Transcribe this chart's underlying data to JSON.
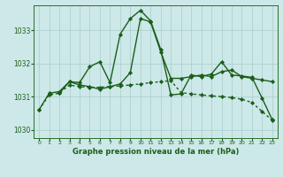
{
  "title": "Graphe pression niveau de la mer (hPa)",
  "bg_color": "#cde8e8",
  "grid_color": "#aacccc",
  "line_color": "#1a5e1a",
  "xlim": [
    -0.5,
    23.5
  ],
  "ylim": [
    1029.75,
    1033.75
  ],
  "yticks": [
    1030,
    1031,
    1032,
    1033
  ],
  "xticks": [
    0,
    1,
    2,
    3,
    4,
    5,
    6,
    7,
    8,
    9,
    10,
    11,
    12,
    13,
    14,
    15,
    16,
    17,
    18,
    19,
    20,
    21,
    22,
    23
  ],
  "series": [
    {
      "x": [
        0,
        1,
        2,
        3,
        4,
        5,
        6,
        7,
        8,
        9,
        10,
        11,
        12,
        13,
        14,
        15,
        16,
        17,
        18,
        19,
        20,
        21,
        22,
        23
      ],
      "y": [
        1030.6,
        1031.05,
        1031.1,
        1031.35,
        1031.3,
        1031.28,
        1031.28,
        1031.3,
        1031.32,
        1031.35,
        1031.38,
        1031.42,
        1031.45,
        1031.48,
        1031.12,
        1031.08,
        1031.05,
        1031.02,
        1031.0,
        1030.97,
        1030.92,
        1030.82,
        1030.55,
        1030.28
      ],
      "lw": 1.0,
      "linestyle": "dotted",
      "marker": true
    },
    {
      "x": [
        0,
        1,
        2,
        3,
        4,
        5,
        6,
        7,
        8,
        9,
        10,
        11,
        12,
        13,
        14,
        15,
        16,
        17,
        18,
        19,
        20,
        21,
        22,
        23
      ],
      "y": [
        1030.6,
        1031.1,
        1031.15,
        1031.45,
        1031.35,
        1031.3,
        1031.22,
        1031.3,
        1031.38,
        1031.72,
        1033.35,
        1033.25,
        1032.35,
        1031.55,
        1031.55,
        1031.6,
        1031.65,
        1031.6,
        1031.75,
        1031.8,
        1031.6,
        1031.55,
        1031.5,
        1031.45
      ],
      "lw": 1.0,
      "linestyle": "solid",
      "marker": true
    },
    {
      "x": [
        2,
        3,
        4,
        5,
        6,
        7,
        8,
        9,
        10,
        11,
        12,
        13,
        14,
        15,
        16,
        17,
        18,
        19,
        20,
        21,
        22,
        23
      ],
      "y": [
        1031.1,
        1031.45,
        1031.42,
        1031.9,
        1032.05,
        1031.42,
        1032.88,
        1033.35,
        1033.6,
        1033.28,
        1032.42,
        1031.05,
        1031.08,
        1031.65,
        1031.6,
        1031.68,
        1032.05,
        1031.65,
        1031.62,
        1031.58,
        1030.95,
        1030.3
      ],
      "lw": 1.0,
      "linestyle": "solid",
      "marker": true
    }
  ]
}
